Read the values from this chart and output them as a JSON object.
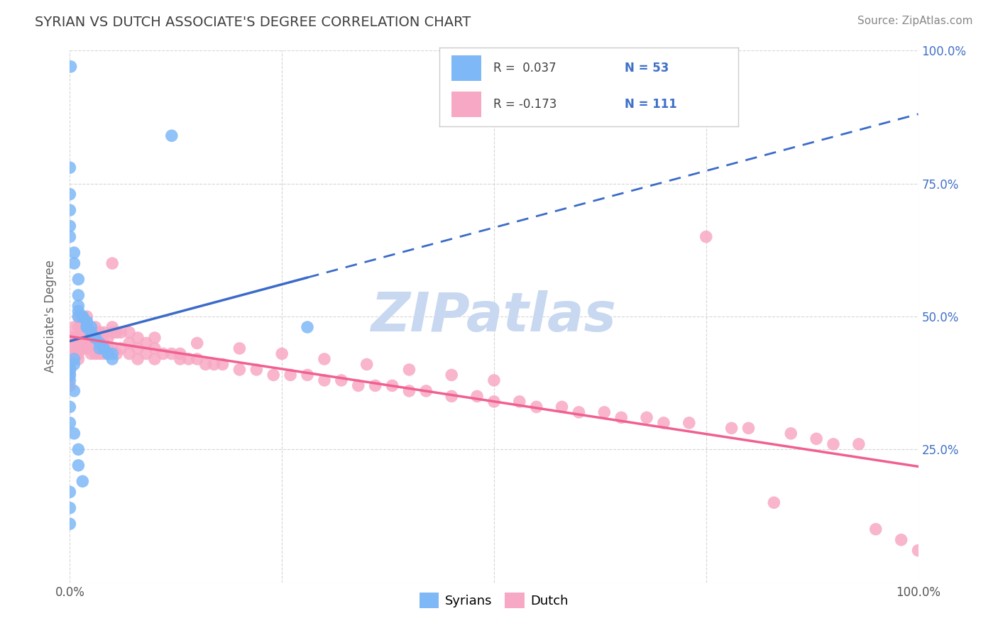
{
  "title": "SYRIAN VS DUTCH ASSOCIATE'S DEGREE CORRELATION CHART",
  "source": "Source: ZipAtlas.com",
  "ylabel": "Associate's Degree",
  "xlim": [
    0,
    1.0
  ],
  "ylim": [
    0,
    1.0
  ],
  "syrian_color": "#7eb8f7",
  "dutch_color": "#f7a8c4",
  "syrian_line_color": "#3b6bc9",
  "dutch_line_color": "#f06090",
  "watermark": "ZIPatlas",
  "watermark_color": "#c8d8f0",
  "background_color": "#ffffff",
  "title_color": "#404040",
  "legend_text_color": "#4070c8",
  "r_syrian": 0.037,
  "n_syrian": 53,
  "r_dutch": -0.173,
  "n_dutch": 111,
  "syrian_x": [
    0.001,
    0.12,
    0.0,
    0.0,
    0.0,
    0.0,
    0.0,
    0.005,
    0.005,
    0.01,
    0.01,
    0.01,
    0.01,
    0.01,
    0.015,
    0.015,
    0.02,
    0.02,
    0.02,
    0.02,
    0.02,
    0.025,
    0.025,
    0.025,
    0.03,
    0.03,
    0.03,
    0.035,
    0.035,
    0.04,
    0.04,
    0.045,
    0.045,
    0.05,
    0.05,
    0.005,
    0.005,
    0.0,
    0.0,
    0.0,
    0.0,
    0.0,
    0.28,
    0.005,
    0.0,
    0.0,
    0.005,
    0.01,
    0.01,
    0.015,
    0.0,
    0.0,
    0.0
  ],
  "syrian_y": [
    0.97,
    0.84,
    0.78,
    0.73,
    0.7,
    0.67,
    0.65,
    0.62,
    0.6,
    0.57,
    0.54,
    0.52,
    0.51,
    0.5,
    0.5,
    0.5,
    0.49,
    0.49,
    0.49,
    0.48,
    0.48,
    0.48,
    0.47,
    0.47,
    0.46,
    0.46,
    0.46,
    0.45,
    0.44,
    0.44,
    0.44,
    0.43,
    0.43,
    0.43,
    0.42,
    0.42,
    0.41,
    0.4,
    0.4,
    0.4,
    0.39,
    0.38,
    0.48,
    0.36,
    0.33,
    0.3,
    0.28,
    0.25,
    0.22,
    0.19,
    0.17,
    0.14,
    0.11
  ],
  "dutch_x": [
    0.0,
    0.0,
    0.0,
    0.0,
    0.0,
    0.0,
    0.0,
    0.0,
    0.005,
    0.005,
    0.005,
    0.01,
    0.01,
    0.01,
    0.01,
    0.01,
    0.01,
    0.015,
    0.015,
    0.015,
    0.02,
    0.02,
    0.02,
    0.02,
    0.025,
    0.025,
    0.025,
    0.025,
    0.03,
    0.03,
    0.03,
    0.03,
    0.035,
    0.035,
    0.035,
    0.04,
    0.04,
    0.04,
    0.045,
    0.045,
    0.05,
    0.05,
    0.05,
    0.055,
    0.055,
    0.06,
    0.06,
    0.07,
    0.07,
    0.07,
    0.08,
    0.08,
    0.08,
    0.09,
    0.09,
    0.1,
    0.1,
    0.11,
    0.12,
    0.13,
    0.13,
    0.14,
    0.15,
    0.16,
    0.17,
    0.18,
    0.2,
    0.22,
    0.24,
    0.26,
    0.28,
    0.3,
    0.32,
    0.34,
    0.36,
    0.38,
    0.4,
    0.42,
    0.45,
    0.48,
    0.5,
    0.53,
    0.55,
    0.58,
    0.6,
    0.63,
    0.65,
    0.68,
    0.7,
    0.73,
    0.75,
    0.78,
    0.8,
    0.83,
    0.85,
    0.88,
    0.9,
    0.93,
    0.95,
    0.98,
    1.0,
    0.05,
    0.1,
    0.15,
    0.2,
    0.25,
    0.3,
    0.35,
    0.4,
    0.45,
    0.5
  ],
  "dutch_y": [
    0.46,
    0.44,
    0.43,
    0.42,
    0.41,
    0.4,
    0.39,
    0.37,
    0.48,
    0.46,
    0.44,
    0.5,
    0.48,
    0.46,
    0.44,
    0.43,
    0.42,
    0.48,
    0.46,
    0.44,
    0.5,
    0.48,
    0.46,
    0.44,
    0.48,
    0.47,
    0.45,
    0.43,
    0.48,
    0.47,
    0.45,
    0.43,
    0.47,
    0.45,
    0.43,
    0.47,
    0.45,
    0.43,
    0.46,
    0.44,
    0.6,
    0.48,
    0.44,
    0.47,
    0.43,
    0.47,
    0.44,
    0.47,
    0.45,
    0.43,
    0.46,
    0.44,
    0.42,
    0.45,
    0.43,
    0.44,
    0.42,
    0.43,
    0.43,
    0.43,
    0.42,
    0.42,
    0.42,
    0.41,
    0.41,
    0.41,
    0.4,
    0.4,
    0.39,
    0.39,
    0.39,
    0.38,
    0.38,
    0.37,
    0.37,
    0.37,
    0.36,
    0.36,
    0.35,
    0.35,
    0.34,
    0.34,
    0.33,
    0.33,
    0.32,
    0.32,
    0.31,
    0.31,
    0.3,
    0.3,
    0.65,
    0.29,
    0.29,
    0.15,
    0.28,
    0.27,
    0.26,
    0.26,
    0.1,
    0.08,
    0.06,
    0.47,
    0.46,
    0.45,
    0.44,
    0.43,
    0.42,
    0.41,
    0.4,
    0.39,
    0.38
  ]
}
